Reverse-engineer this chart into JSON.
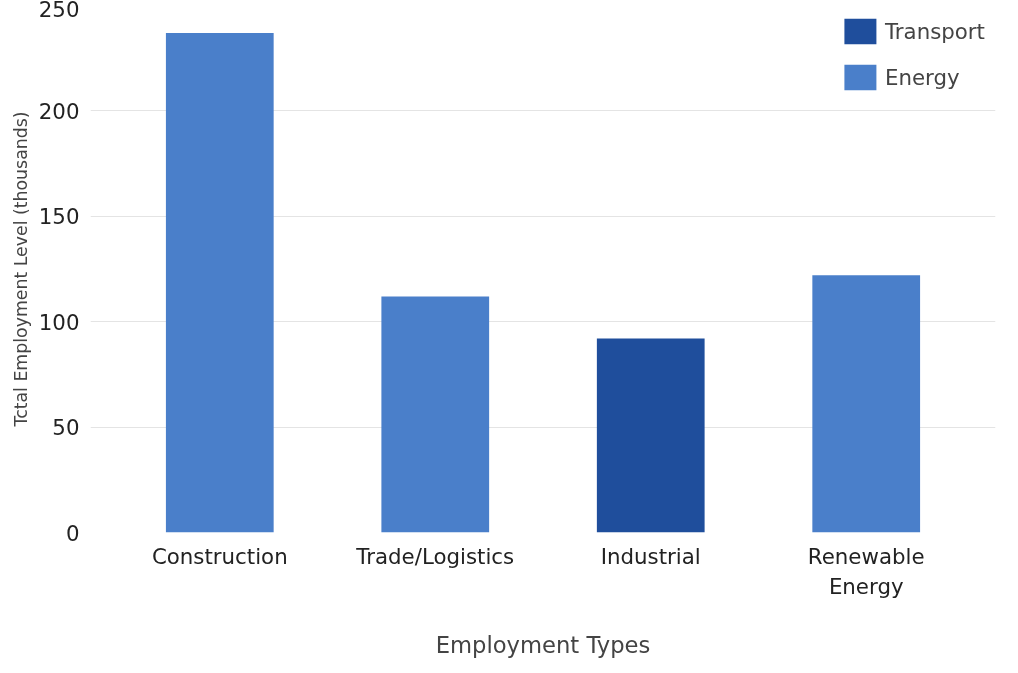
{
  "chart_data": {
    "type": "bar",
    "xlabel": "Employment Types",
    "ylabel": "Tctal Employment Level (thousands)",
    "categories": [
      "Construction",
      "Trade/Logistics",
      "Industrial",
      "Renewable\nEnergy"
    ],
    "series": [
      {
        "name": "Transport",
        "color": "#1f4e9c",
        "values": [
          null,
          null,
          92,
          null
        ]
      },
      {
        "name": "Energy",
        "color": "#4a7fca",
        "values": [
          237,
          112,
          null,
          122
        ]
      }
    ],
    "ylim": [
      0,
      250
    ],
    "yticks": [
      0,
      50,
      100,
      150,
      200,
      250
    ],
    "grid": "y",
    "legend": "top right"
  }
}
